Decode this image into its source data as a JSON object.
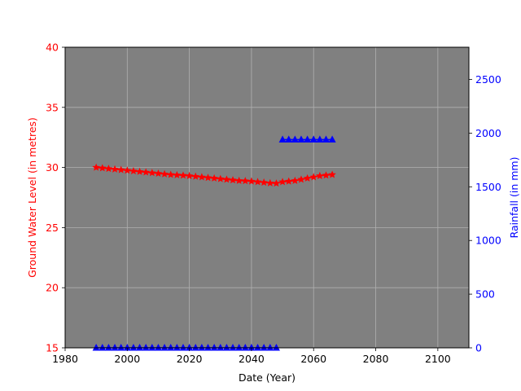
{
  "chart_data": {
    "type": "line",
    "title": "",
    "xlabel": "Date (Year)",
    "ylabel_left": "Ground Water Level (in metres)",
    "ylabel_right": "Rainfall (in mm)",
    "xlim": [
      1980,
      2110
    ],
    "ylim_left": [
      15,
      40
    ],
    "ylim_right": [
      0,
      2800
    ],
    "xticks": [
      "1980",
      "2000",
      "2020",
      "2040",
      "2060",
      "2080",
      "2100"
    ],
    "yticks_left": [
      "15",
      "20",
      "25",
      "30",
      "35",
      "40"
    ],
    "yticks_right": [
      "0",
      "500",
      "1000",
      "1500",
      "2000",
      "2500"
    ],
    "grid": true,
    "plot_background": "#808080",
    "colors": {
      "left_axis": "#ff0000",
      "right_axis": "#0000ff",
      "grid": "#b0b0b0"
    },
    "series": [
      {
        "axis": "left",
        "color": "#ff0000",
        "marker": "star",
        "x": [
          1990,
          1992,
          1994,
          1996,
          1998,
          2000,
          2002,
          2004,
          2006,
          2008,
          2010,
          2012,
          2014,
          2016,
          2018,
          2020,
          2022,
          2024,
          2026,
          2028,
          2030,
          2032,
          2034,
          2036,
          2038,
          2040,
          2042,
          2044,
          2046,
          2048,
          2050,
          2052,
          2054,
          2056,
          2058,
          2060,
          2062,
          2064,
          2066
        ],
        "values": [
          30.0,
          29.95,
          29.9,
          29.85,
          29.8,
          29.75,
          29.7,
          29.65,
          29.6,
          29.55,
          29.5,
          29.45,
          29.4,
          29.37,
          29.34,
          29.3,
          29.25,
          29.2,
          29.15,
          29.1,
          29.05,
          29.0,
          28.95,
          28.9,
          28.88,
          28.85,
          28.8,
          28.75,
          28.7,
          28.68,
          28.8,
          28.85,
          28.9,
          29.0,
          29.1,
          29.2,
          29.3,
          29.35,
          29.4
        ]
      },
      {
        "axis": "right",
        "color": "#0000ff",
        "marker": "triangle",
        "x": [
          1990,
          1992,
          1994,
          1996,
          1998,
          2000,
          2002,
          2004,
          2006,
          2008,
          2010,
          2012,
          2014,
          2016,
          2018,
          2020,
          2022,
          2024,
          2026,
          2028,
          2030,
          2032,
          2034,
          2036,
          2038,
          2040,
          2042,
          2044,
          2046,
          2048
        ],
        "values": [
          0,
          0,
          0,
          0,
          0,
          0,
          0,
          0,
          0,
          0,
          0,
          0,
          0,
          0,
          0,
          0,
          0,
          0,
          0,
          0,
          0,
          0,
          0,
          0,
          0,
          0,
          0,
          0,
          0,
          0
        ]
      },
      {
        "axis": "right",
        "color": "#0000ff",
        "marker": "triangle",
        "x": [
          2050,
          2052,
          2054,
          2056,
          2058,
          2060,
          2062,
          2064,
          2066
        ],
        "values": [
          1940,
          1940,
          1940,
          1940,
          1940,
          1940,
          1940,
          1940,
          1940
        ]
      }
    ]
  }
}
